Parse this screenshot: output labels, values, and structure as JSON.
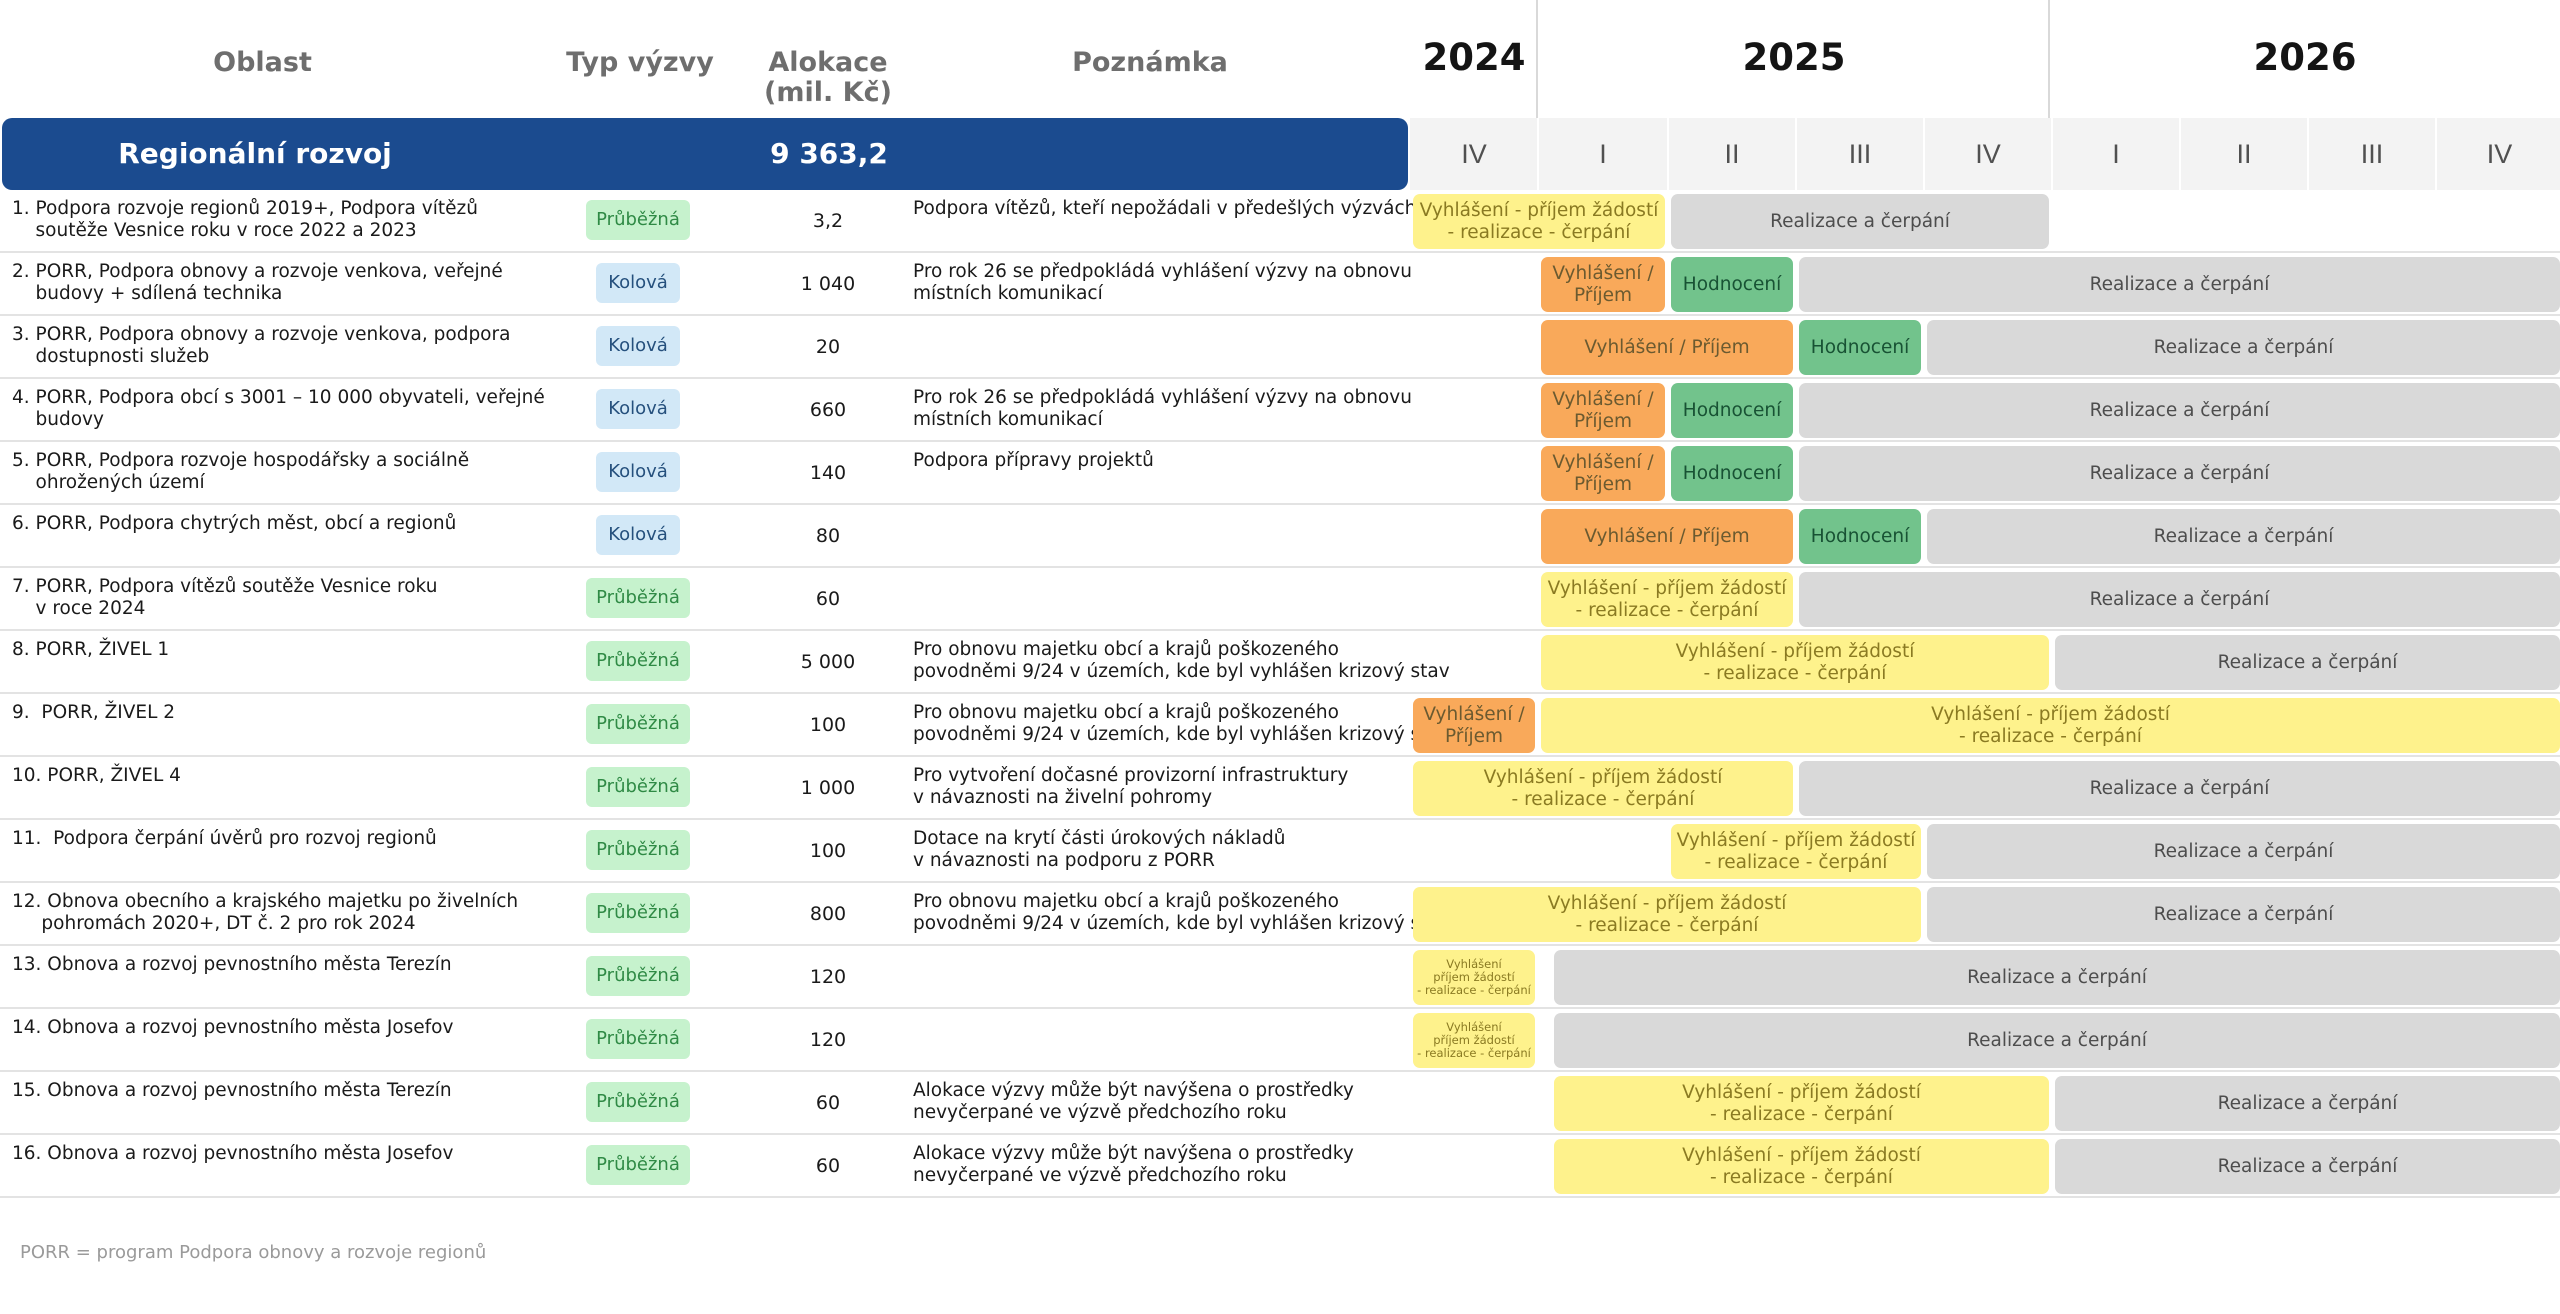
{
  "headers": {
    "oblast": "Oblast",
    "typ": "Typ výzvy",
    "alokace": "Alokace\n(mil. Kč)",
    "poznamka": "Poznámka"
  },
  "years": [
    "2024",
    "2025",
    "2026"
  ],
  "quarters": [
    "IV",
    "I",
    "II",
    "III",
    "IV",
    "I",
    "II",
    "III",
    "IV"
  ],
  "section": {
    "title": "Regionální rozvoj",
    "allocation": "9 363,2"
  },
  "colors": {
    "band": "#1b4b8f",
    "yellow": "#fef28c",
    "orange": "#f9a95a",
    "green": "#72c38c",
    "gray": "#d9d9d9"
  },
  "rows": [
    {
      "name": "1. Podpora rozvoje regionů 2019+, Podpora vítězů\n    soutěže Vesnice roku v roce 2022 a 2023",
      "type": "Průběžná",
      "alloc": "3,2",
      "note": "Podpora vítězů, kteří nepožádali v předešlých výzvách",
      "bars": [
        {
          "label": "Vyhlášení - příjem žádostí\n- realizace - čerpání",
          "color": "yellow",
          "from": 0,
          "to": 2
        },
        {
          "label": "Realizace a čerpání",
          "color": "gray",
          "from": 2,
          "to": 5
        }
      ]
    },
    {
      "name": "2. PORR, Podpora obnovy a rozvoje venkova, veřejné\n    budovy + sdílená technika",
      "type": "Kolová",
      "alloc": "1 040",
      "note": "Pro rok 26 se předpokládá vyhlášení výzvy na obnovu\nmístních komunikací",
      "bars": [
        {
          "label": "Vyhlášení /\nPříjem",
          "color": "orange",
          "from": 1,
          "to": 2
        },
        {
          "label": "Hodnocení",
          "color": "green",
          "from": 2,
          "to": 3
        },
        {
          "label": "Realizace a čerpání",
          "color": "gray",
          "from": 3,
          "to": 9
        }
      ]
    },
    {
      "name": "3. PORR, Podpora obnovy a rozvoje venkova, podpora\n    dostupnosti služeb",
      "type": "Kolová",
      "alloc": "20",
      "note": "",
      "bars": [
        {
          "label": "Vyhlášení / Příjem",
          "color": "orange",
          "from": 1,
          "to": 3
        },
        {
          "label": "Hodnocení",
          "color": "green",
          "from": 3,
          "to": 4
        },
        {
          "label": "Realizace a čerpání",
          "color": "gray",
          "from": 4,
          "to": 9
        }
      ]
    },
    {
      "name": "4. PORR, Podpora obcí s 3001 – 10 000 obyvateli, veřejné\n    budovy",
      "type": "Kolová",
      "alloc": "660",
      "note": "Pro rok 26 se předpokládá vyhlášení výzvy na obnovu\nmístních komunikací",
      "bars": [
        {
          "label": "Vyhlášení /\nPříjem",
          "color": "orange",
          "from": 1,
          "to": 2
        },
        {
          "label": "Hodnocení",
          "color": "green",
          "from": 2,
          "to": 3
        },
        {
          "label": "Realizace a čerpání",
          "color": "gray",
          "from": 3,
          "to": 9
        }
      ]
    },
    {
      "name": "5. PORR, Podpora rozvoje hospodářsky a sociálně\n    ohrožených území",
      "type": "Kolová",
      "alloc": "140",
      "note": "Podpora přípravy projektů",
      "bars": [
        {
          "label": "Vyhlášení /\nPříjem",
          "color": "orange",
          "from": 1,
          "to": 2
        },
        {
          "label": "Hodnocení",
          "color": "green",
          "from": 2,
          "to": 3
        },
        {
          "label": "Realizace a čerpání",
          "color": "gray",
          "from": 3,
          "to": 9
        }
      ]
    },
    {
      "name": "6. PORR, Podpora chytrých měst, obcí a regionů",
      "type": "Kolová",
      "alloc": "80",
      "note": "",
      "bars": [
        {
          "label": "Vyhlášení / Příjem",
          "color": "orange",
          "from": 1,
          "to": 3
        },
        {
          "label": "Hodnocení",
          "color": "green",
          "from": 3,
          "to": 4
        },
        {
          "label": "Realizace a čerpání",
          "color": "gray",
          "from": 4,
          "to": 9
        }
      ]
    },
    {
      "name": "7. PORR, Podpora vítězů soutěže Vesnice roku\n    v roce 2024",
      "type": "Průběžná",
      "alloc": "60",
      "note": "",
      "bars": [
        {
          "label": "Vyhlášení - příjem žádostí\n- realizace - čerpání",
          "color": "yellow",
          "from": 1,
          "to": 3
        },
        {
          "label": "Realizace a čerpání",
          "color": "gray",
          "from": 3,
          "to": 9
        }
      ]
    },
    {
      "name": "8. PORR, ŽIVEL 1",
      "type": "Průběžná",
      "alloc": "5 000",
      "note": "Pro obnovu majetku obcí a krajů poškozeného\npovodněmi 9/24 v územích, kde byl vyhlášen krizový stav",
      "bars": [
        {
          "label": "Vyhlášení - příjem žádostí\n- realizace - čerpání",
          "color": "yellow",
          "from": 1,
          "to": 5
        },
        {
          "label": "Realizace a čerpání",
          "color": "gray",
          "from": 5,
          "to": 9
        }
      ]
    },
    {
      "name": "9.  PORR, ŽIVEL 2",
      "type": "Průběžná",
      "alloc": "100",
      "note": "Pro obnovu majetku obcí a krajů poškozeného\npovodněmi 9/24 v územích, kde byl vyhlášen krizový stav",
      "bars": [
        {
          "label": "Vyhlášení /\nPříjem",
          "color": "orange",
          "from": 0,
          "to": 1
        },
        {
          "label": "Vyhlášení - příjem žádostí\n- realizace - čerpání",
          "color": "yellow",
          "from": 1,
          "to": 9
        }
      ]
    },
    {
      "name": "10. PORR, ŽIVEL 4",
      "type": "Průběžná",
      "alloc": "1 000",
      "note": "Pro vytvoření dočasné provizorní infrastruktury\nv návaznosti na živelní pohromy",
      "bars": [
        {
          "label": "Vyhlášení - příjem žádostí\n- realizace - čerpání",
          "color": "yellow",
          "from": 0,
          "to": 3
        },
        {
          "label": "Realizace a čerpání",
          "color": "gray",
          "from": 3,
          "to": 9
        }
      ]
    },
    {
      "name": "11.  Podpora čerpání úvěrů pro rozvoj regionů",
      "type": "Průběžná",
      "alloc": "100",
      "note": "Dotace na krytí části úrokových nákladů\nv návaznosti na podporu z PORR",
      "bars": [
        {
          "label": "Vyhlášení - příjem žádostí\n- realizace - čerpání",
          "color": "yellow",
          "from": 2,
          "to": 4
        },
        {
          "label": "Realizace a čerpání",
          "color": "gray",
          "from": 4,
          "to": 9
        }
      ]
    },
    {
      "name": "12. Obnova obecního a krajského majetku po živelních\n     pohromách 2020+, DT č. 2 pro rok 2024",
      "type": "Průběžná",
      "alloc": "800",
      "note": "Pro obnovu majetku obcí a krajů poškozeného\npovodněmi 9/24 v územích, kde byl vyhlášen krizový stav",
      "bars": [
        {
          "label": "Vyhlášení - příjem žádostí\n- realizace - čerpání",
          "color": "yellow",
          "from": 0,
          "to": 4
        },
        {
          "label": "Realizace a čerpání",
          "color": "gray",
          "from": 4,
          "to": 9
        }
      ]
    },
    {
      "name": "13. Obnova a rozvoj pevnostního města Terezín",
      "type": "Průběžná",
      "alloc": "120",
      "note": "",
      "bars": [
        {
          "label": "Vyhlášení\npříjem žádostí\n- realizace - čerpání",
          "color": "yellow",
          "from": 0,
          "to": 1,
          "small": true
        },
        {
          "label": "Realizace a čerpání",
          "color": "gray",
          "from": 1.1,
          "to": 9
        }
      ]
    },
    {
      "name": "14. Obnova a rozvoj pevnostního města Josefov",
      "type": "Průběžná",
      "alloc": "120",
      "note": "",
      "bars": [
        {
          "label": "Vyhlášení\npříjem žádostí\n- realizace - čerpání",
          "color": "yellow",
          "from": 0,
          "to": 1,
          "small": true
        },
        {
          "label": "Realizace a čerpání",
          "color": "gray",
          "from": 1.1,
          "to": 9
        }
      ]
    },
    {
      "name": "15. Obnova a rozvoj pevnostního města Terezín",
      "type": "Průběžná",
      "alloc": "60",
      "note": "Alokace výzvy může být navýšena o prostředky\nnevyčerpané ve výzvě předchozího roku",
      "bars": [
        {
          "label": "Vyhlášení - příjem žádostí\n- realizace - čerpání",
          "color": "yellow",
          "from": 1.1,
          "to": 5
        },
        {
          "label": "Realizace a čerpání",
          "color": "gray",
          "from": 5,
          "to": 9
        }
      ]
    },
    {
      "name": "16. Obnova a rozvoj pevnostního města Josefov",
      "type": "Průběžná",
      "alloc": "60",
      "note": "Alokace výzvy může být navýšena o prostředky\nnevyčerpané ve výzvě předchozího roku",
      "bars": [
        {
          "label": "Vyhlášení - příjem žádostí\n- realizace - čerpání",
          "color": "yellow",
          "from": 1.1,
          "to": 5
        },
        {
          "label": "Realizace a čerpání",
          "color": "gray",
          "from": 5,
          "to": 9
        }
      ]
    }
  ],
  "footnote": "PORR = program Podpora obnovy a rozvoje regionů"
}
